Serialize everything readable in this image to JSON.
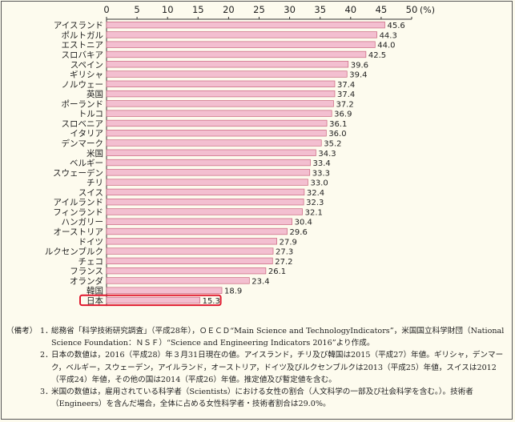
{
  "chart_data": {
    "type": "bar",
    "orientation": "horizontal",
    "title": "",
    "xlabel": "",
    "ylabel": "",
    "unit_label": "(%)",
    "xlim": [
      0,
      50
    ],
    "ticks": [
      "0",
      "5",
      "10",
      "15",
      "20",
      "25",
      "30",
      "35",
      "40",
      "45",
      "50"
    ],
    "categories": [
      "アイスランド",
      "ポルトガル",
      "エストニア",
      "スロバキア",
      "スペイン",
      "ギリシャ",
      "ノルウェー",
      "英国",
      "ポーランド",
      "トルコ",
      "スロベニア",
      "イタリア",
      "デンマーク",
      "米国",
      "ベルギー",
      "スウェーデン",
      "チリ",
      "スイス",
      "アイルランド",
      "フィンランド",
      "ハンガリー",
      "オーストリア",
      "ドイツ",
      "ルクセンブルク",
      "チェコ",
      "フランス",
      "オランダ",
      "韓国",
      "日本"
    ],
    "values": [
      45.6,
      44.3,
      44.0,
      42.5,
      39.6,
      39.4,
      37.4,
      37.4,
      37.2,
      36.9,
      36.1,
      36.0,
      35.2,
      34.3,
      33.4,
      33.3,
      33.0,
      32.4,
      32.3,
      32.1,
      30.4,
      29.6,
      27.9,
      27.3,
      27.2,
      26.1,
      23.4,
      18.9,
      15.3
    ],
    "value_labels": [
      "45.6",
      "44.3",
      "44.0",
      "42.5",
      "39.6",
      "39.4",
      "37.4",
      "37.4",
      "37.2",
      "36.9",
      "36.1",
      "36.0",
      "35.2",
      "34.3",
      "33.4",
      "33.3",
      "33.0",
      "32.4",
      "32.3",
      "32.1",
      "30.4",
      "29.6",
      "27.9",
      "27.3",
      "27.2",
      "26.1",
      "23.4",
      "18.9",
      "15.3"
    ],
    "highlight": "日本",
    "colors": {
      "bar": "#f3bfd0",
      "bar_stroke": "#c9647f",
      "highlight_box": "#e0182e"
    }
  },
  "notes": {
    "prefix": "（備考）",
    "items": [
      {
        "num": "1．",
        "text": "総務省「科学技術研究調査」（平成28年），ＯＥＣＤ“Main Science and TechnologyIndicators”，米国国立科学財団（National Science Foundation：ＮＳＦ）“Science and Engineering Indicators 2016”より作成。"
      },
      {
        "num": "2．",
        "text": "日本の数値は，2016（平成28）年３月31日現在の値。アイスランド，チリ及び韓国は2015（平成27）年値。ギリシャ，デンマーク，ベルギー，スウェーデン，アイルランド，オーストリア，ドイツ及びルクセンブルクは2013（平成25）年値，スイスは2012（平成24）年値，その他の国は2014（平成26）年値。推定値及び暫定値を含む。"
      },
      {
        "num": "3．",
        "text": "米国の数値は，雇用されている科学者（Scientists）における女性の割合（人文科学の一部及び社会科学を含む。）。技術者（Engineers）を含んだ場合，全体に占める女性科学者・技術者割合は29.0%。"
      }
    ]
  }
}
